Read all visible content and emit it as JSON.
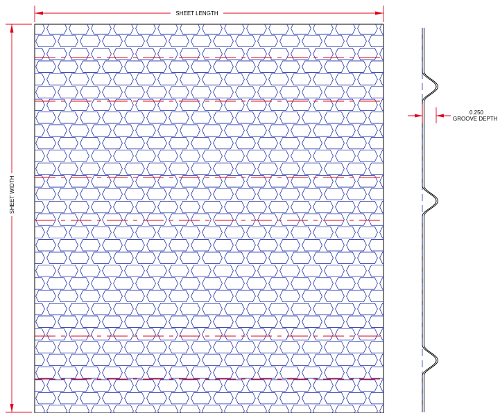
{
  "labels": {
    "sheet_length": "SHEET LENGTH",
    "sheet_width": "SHEET WIDTH",
    "groove_depth_value": "0.250",
    "groove_depth_label": "GROOVE DEPTH"
  },
  "colors": {
    "mesh": "#1f2fa8",
    "dimension": "#e0001a",
    "outline": "#000000",
    "background": "#ffffff"
  }
}
